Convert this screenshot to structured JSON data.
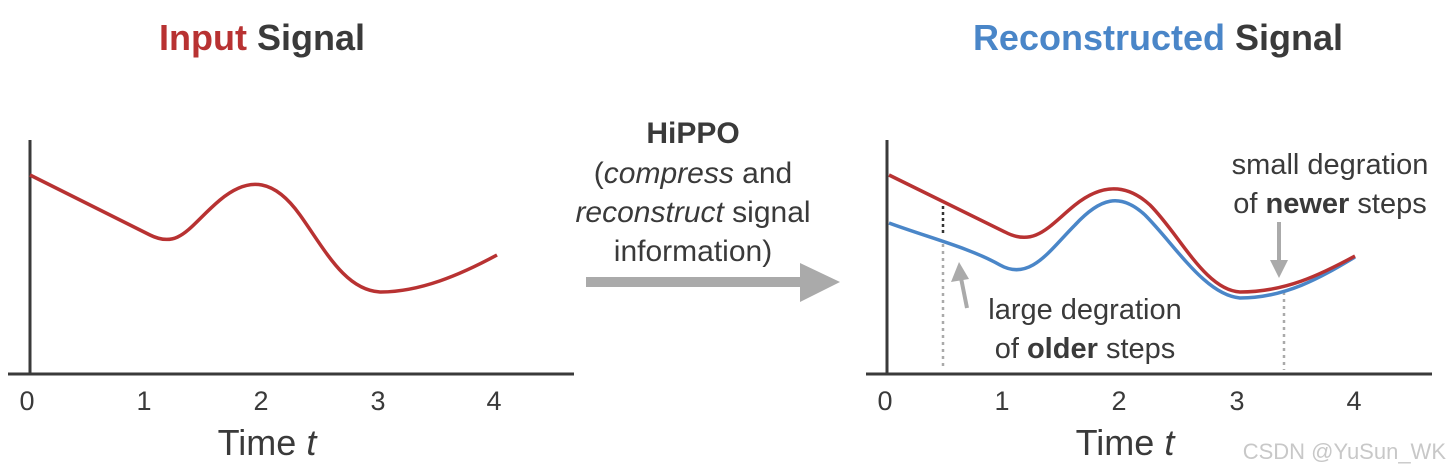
{
  "left_panel": {
    "title_part1": "Input",
    "title_part2": "Signal",
    "xticks": [
      "0",
      "1",
      "2",
      "3",
      "4"
    ],
    "xlabel_text": "Time",
    "xlabel_var": "t"
  },
  "right_panel": {
    "title_part1": "Reconstructed",
    "title_part2": "Signal",
    "xticks": [
      "0",
      "1",
      "2",
      "3",
      "4"
    ],
    "xlabel_text": "Time",
    "xlabel_var": "t",
    "small_note_line1": "small degration",
    "small_note_pre": "of",
    "small_note_bold": "newer",
    "small_note_post": "steps",
    "large_note_line1": "large degration",
    "large_note_pre": "of",
    "large_note_bold": "older",
    "large_note_post": "steps"
  },
  "middle": {
    "heading": "HiPPO",
    "line2_open": "(",
    "line2_italic": "compress",
    "line2_rest": " and",
    "line3_italic": "reconstruct",
    "line3_rest": " signal",
    "line4": "information)"
  },
  "colors": {
    "input": "#b83232",
    "reconstructed": "#4a86c8",
    "text": "#3a3a3a",
    "arrow": "#aaaaaa"
  },
  "watermark": "CSDN @YuSun_WK"
}
